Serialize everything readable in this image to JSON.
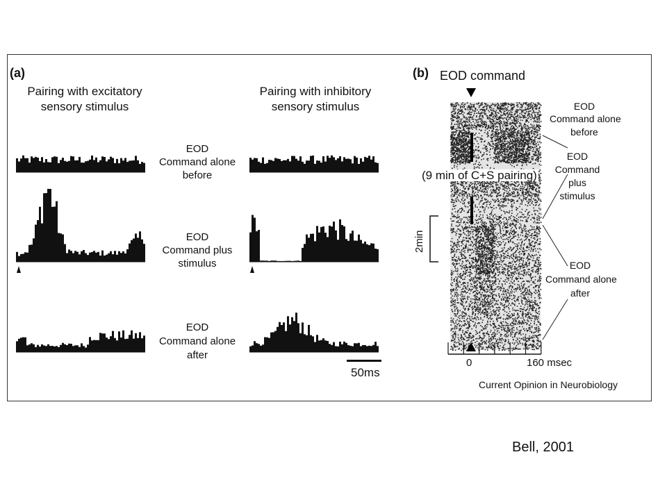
{
  "panel_a": {
    "label": "(a)",
    "col_excitatory": [
      "Pairing with excitatory",
      "sensory stimulus"
    ],
    "col_inhibitory": [
      "Pairing with inhibitory",
      "sensory stimulus"
    ],
    "rows": [
      [
        "EOD",
        "Command alone",
        "before"
      ],
      [
        "EOD",
        "Command plus",
        "stimulus"
      ],
      [
        "EOD",
        "Command alone",
        "after"
      ]
    ],
    "scale_bar": "50ms"
  },
  "panel_b": {
    "label": "(b)",
    "eod_command": "EOD command",
    "pairing_note": "(9 min of C+S pairing)",
    "time_scale": "2min",
    "x_axis_start": "0",
    "x_axis_end": "160 msec",
    "row_before": [
      "EOD",
      "Command alone",
      "before"
    ],
    "row_stimulus": [
      "EOD",
      "Command",
      "plus",
      "stimulus"
    ],
    "row_after": [
      "EOD",
      "Command alone",
      "after"
    ],
    "journal": "Current Opinion in Neurobiology"
  },
  "citation": "Bell, 2001"
}
